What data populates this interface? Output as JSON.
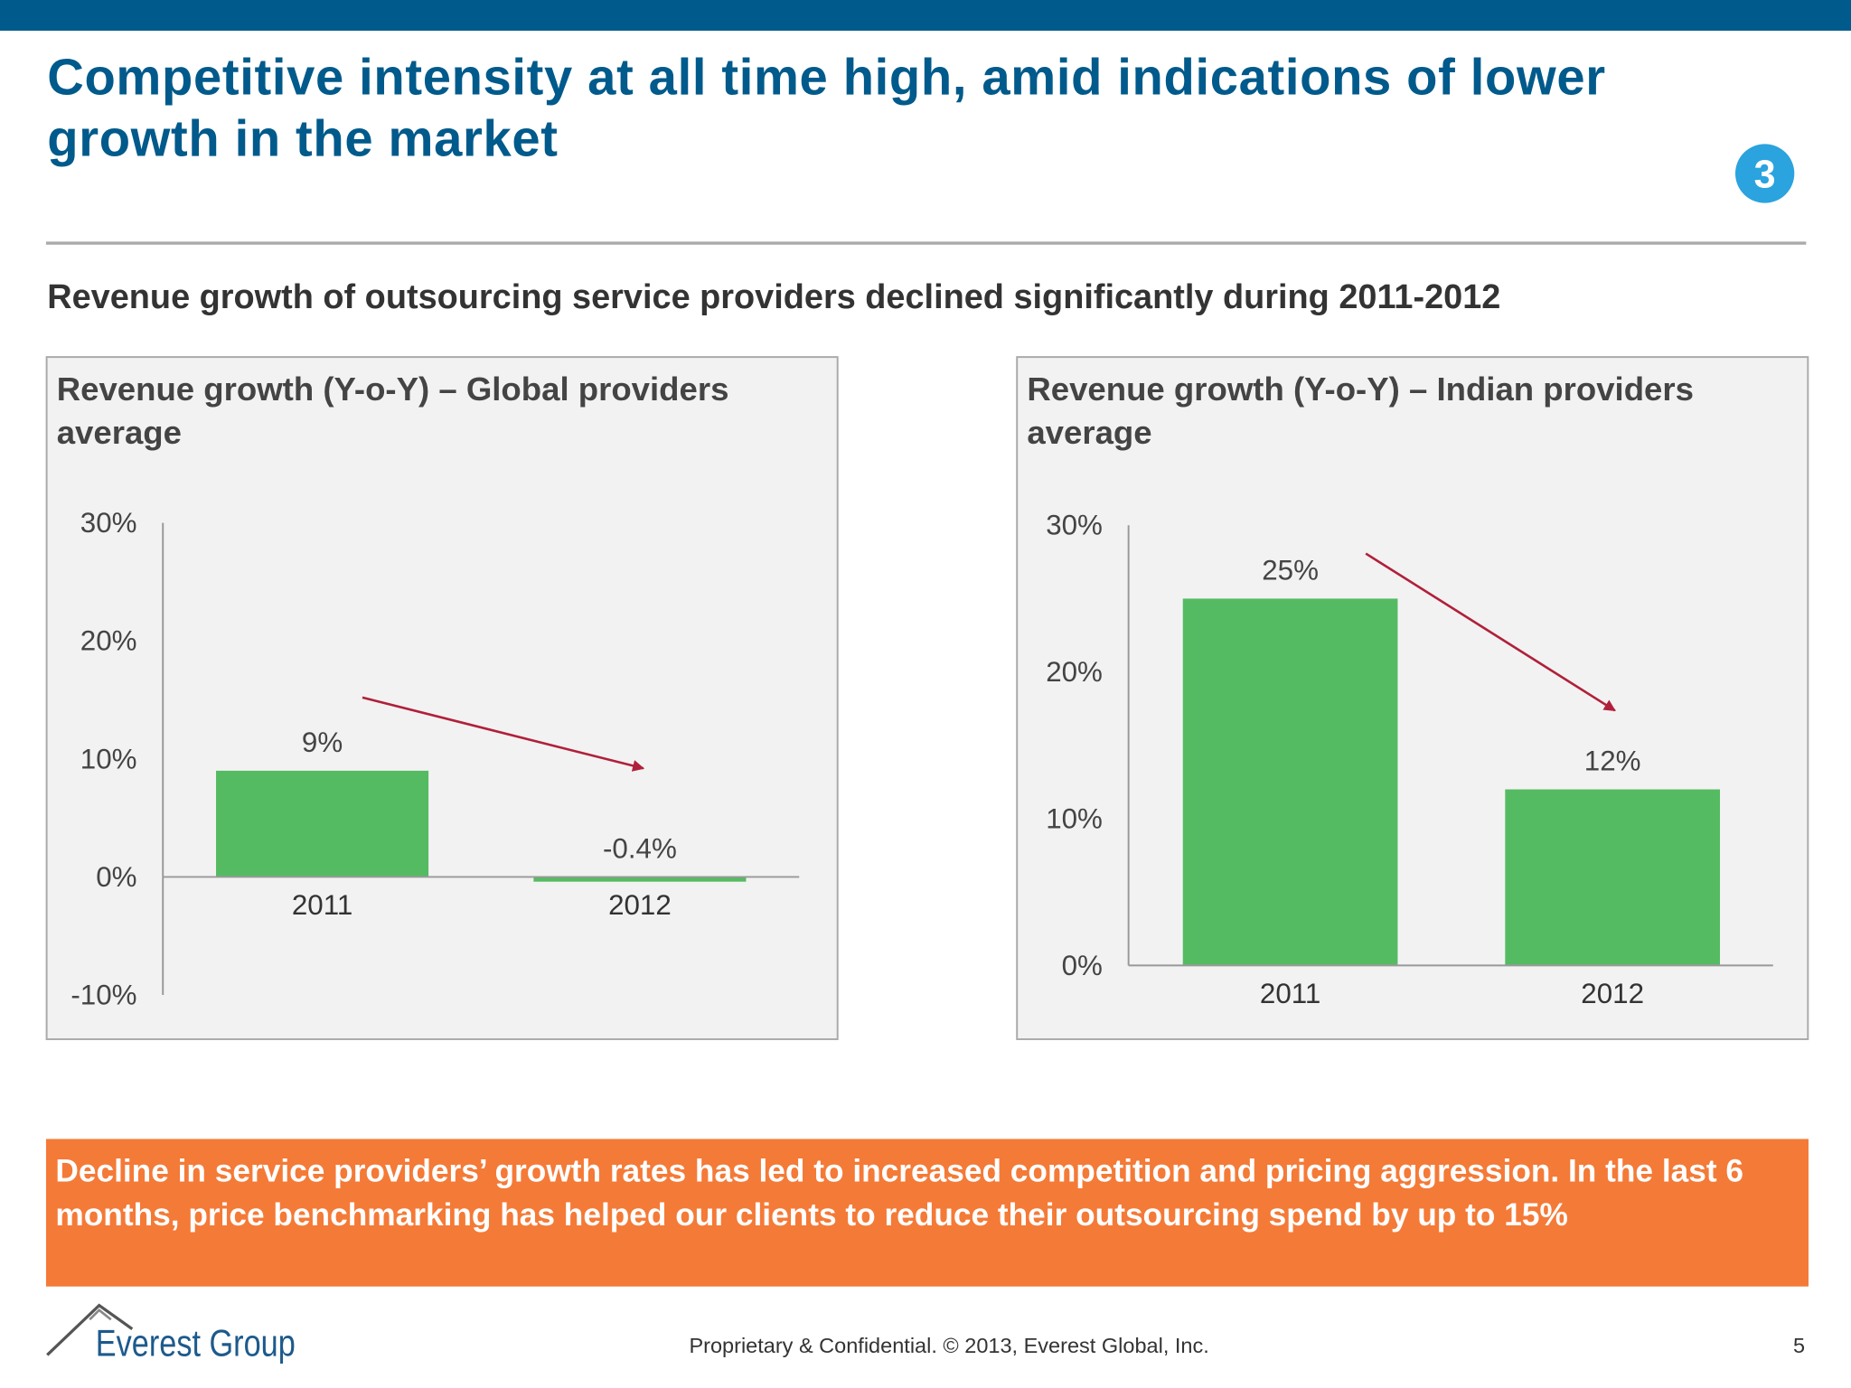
{
  "header": {
    "title": "Competitive intensity at all time high, amid indications of lower growth in the market",
    "badge": "3"
  },
  "subtitle": "Revenue growth of outsourcing service providers declined significantly during 2011-2012",
  "chart_data": [
    {
      "type": "bar",
      "title": "Revenue growth (Y-o-Y) – Global providers average",
      "categories": [
        "2011",
        "2012"
      ],
      "values": [
        9,
        -0.4
      ],
      "value_labels": [
        "9%",
        "-0.4%"
      ],
      "color": "#55bb62",
      "ylim": [
        -10,
        30
      ],
      "yticks": [
        {
          "value": -10,
          "label": "-10%"
        },
        {
          "value": 0,
          "label": "0%"
        },
        {
          "value": 10,
          "label": "10%"
        },
        {
          "value": 20,
          "label": "20%"
        },
        {
          "value": 30,
          "label": "30%"
        }
      ]
    },
    {
      "type": "bar",
      "title": "Revenue growth (Y-o-Y) – Indian providers average",
      "categories": [
        "2011",
        "2012"
      ],
      "values": [
        25,
        12
      ],
      "value_labels": [
        "25%",
        "12%"
      ],
      "color": "#55bb62",
      "ylim": [
        0,
        30
      ],
      "yticks": [
        {
          "value": 0,
          "label": "0%"
        },
        {
          "value": 10,
          "label": "10%"
        },
        {
          "value": 20,
          "label": "20%"
        },
        {
          "value": 30,
          "label": "30%"
        }
      ]
    }
  ],
  "callout": "Decline in service providers’ growth rates has led to increased competition and pricing aggression. In the last 6 months, price benchmarking has helped our clients to reduce their outsourcing spend by up to 15%",
  "footer": {
    "logo": "Everest Group",
    "notice": "Proprietary & Confidential. © 2013, Everest Global, Inc.",
    "page": "5"
  }
}
